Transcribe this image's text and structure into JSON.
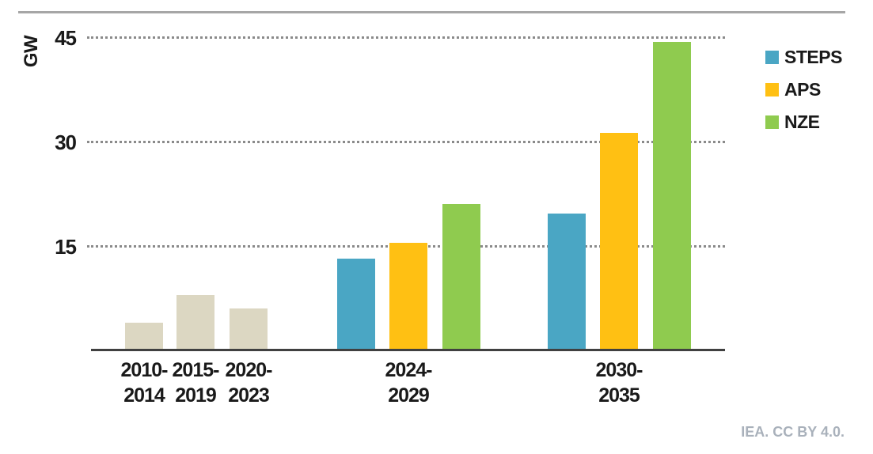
{
  "chart_data": {
    "type": "bar",
    "title": "",
    "ylabel": "GW",
    "xlabel": "",
    "ylim": [
      0,
      45
    ],
    "yticks": [
      45,
      30,
      15
    ],
    "grid": "horizontal dotted at 15, 30, 45",
    "legend_position": "top-right",
    "series_colors": {
      "historical": "#DCD7C2",
      "STEPS": "#4AA6C4",
      "APS": "#FFC013",
      "NZE": "#8FCB4F"
    },
    "legend": [
      {
        "label": "STEPS",
        "color": "#4AA6C4"
      },
      {
        "label": "APS",
        "color": "#FFC013"
      },
      {
        "label": "NZE",
        "color": "#8FCB4F"
      }
    ],
    "groups": [
      {
        "category": "2010-2014",
        "label_lines": [
          "2010-",
          "2014"
        ],
        "bars": [
          {
            "series": "historical",
            "value": 4
          }
        ]
      },
      {
        "category": "2015-2019",
        "label_lines": [
          "2015-",
          "2019"
        ],
        "bars": [
          {
            "series": "historical",
            "value": 8
          }
        ]
      },
      {
        "category": "2020-2023",
        "label_lines": [
          "2020-",
          "2023"
        ],
        "bars": [
          {
            "series": "historical",
            "value": 6
          }
        ]
      },
      {
        "category": "2024-2029",
        "label_lines": [
          "2024-",
          "2029"
        ],
        "bars": [
          {
            "series": "STEPS",
            "value": 13.2
          },
          {
            "series": "APS",
            "value": 15.5
          },
          {
            "series": "NZE",
            "value": 21
          }
        ]
      },
      {
        "category": "2030-2035",
        "label_lines": [
          "2030-",
          "2035"
        ],
        "bars": [
          {
            "series": "STEPS",
            "value": 19.7
          },
          {
            "series": "APS",
            "value": 31.3
          },
          {
            "series": "NZE",
            "value": 44.3
          }
        ]
      }
    ]
  },
  "footer": {
    "credit": "IEA. CC BY 4.0."
  }
}
